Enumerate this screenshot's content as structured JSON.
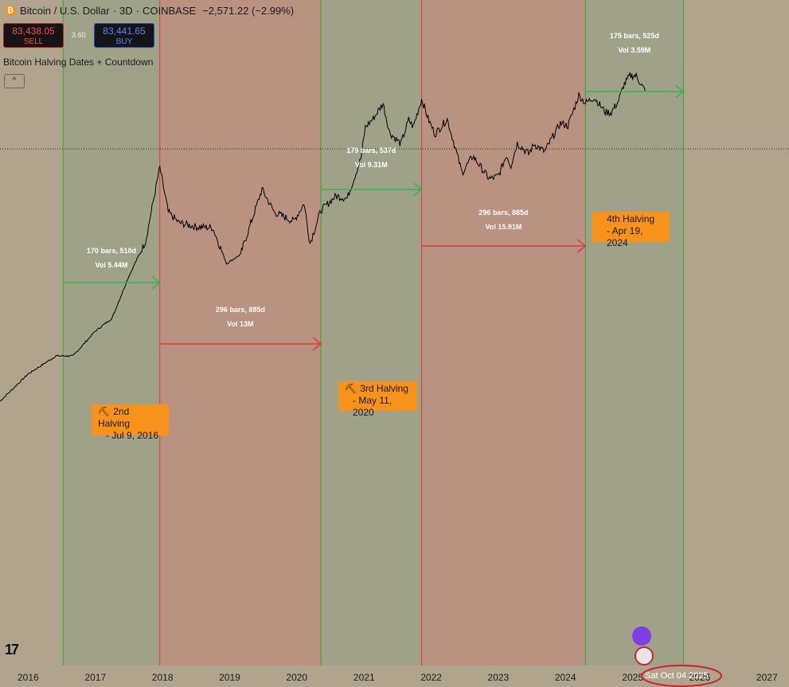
{
  "header": {
    "title": "Bitcoin / U.S. Dollar",
    "interval": "3D",
    "exchange": "COINBASE",
    "change": "−2,571.22 (−2.99%)"
  },
  "trade": {
    "sell_price": "83,438.05",
    "sell_label": "SELL",
    "spread": "3.60",
    "buy_price": "83,441.65",
    "buy_label": "BUY"
  },
  "indicator": {
    "name": "Bitcoin Halving Dates + Countdown",
    "collapse_glyph": "^"
  },
  "labels": {
    "h2_line1": "2nd Halving",
    "h2_line2": "- Jul 9, 2016",
    "h3_line1": "3rd Halving",
    "h3_line2": "- May 11, 2020",
    "h4_line1": "4th Halving",
    "h4_line2": "- Apr 19, 2024",
    "pick": "⛏"
  },
  "crosshair_date": "Sat Oct 04 2025",
  "colors": {
    "background": "#b1a48f",
    "bull_zone": "#9fa289",
    "bear_zone": "#b99282",
    "bull_line": "#31a82f",
    "bear_line": "#e03b3b",
    "halving_label": "#f7931a",
    "price_line": "#000000"
  },
  "chart_data": {
    "type": "line",
    "title": "Bitcoin / U.S. Dollar · 3D · COINBASE",
    "xlabel": "",
    "ylabel": "",
    "x_ticks": [
      "2016",
      "2017",
      "2018",
      "2019",
      "2020",
      "2021",
      "2022",
      "2023",
      "2024",
      "2025",
      "2026",
      "2027"
    ],
    "xlim": [
      "2015-08-01",
      "2027-05-01"
    ],
    "y_scale": "log",
    "series": [
      {
        "name": "",
        "x": [
          "2015-08-01",
          "2016-01-01",
          "2016-06-01",
          "2016-09-01",
          "2017-01-01",
          "2017-04-01",
          "2017-07-01",
          "2017-10-01",
          "2017-12-17",
          "2018-02-01",
          "2018-04-01",
          "2018-07-01",
          "2018-10-01",
          "2018-12-15",
          "2019-03-01",
          "2019-06-26",
          "2019-09-01",
          "2019-12-15",
          "2020-02-10",
          "2020-03-13",
          "2020-05-11",
          "2020-08-01",
          "2020-10-01",
          "2020-12-15",
          "2021-01-08",
          "2021-02-20",
          "2021-04-14",
          "2021-05-20",
          "2021-07-20",
          "2021-09-01",
          "2021-09-25",
          "2021-11-10",
          "2021-12-20",
          "2022-01-22",
          "2022-03-29",
          "2022-05-12",
          "2022-06-18",
          "2022-08-15",
          "2022-09-30",
          "2022-11-09",
          "2022-11-21",
          "2023-01-01",
          "2023-02-15",
          "2023-03-10",
          "2023-04-14",
          "2023-06-15",
          "2023-07-15",
          "2023-09-10",
          "2023-10-25",
          "2023-12-05",
          "2024-01-15",
          "2024-03-14",
          "2024-04-19",
          "2024-06-05",
          "2024-08-05",
          "2024-09-06",
          "2024-10-15",
          "2024-11-12",
          "2024-12-17",
          "2025-01-20",
          "2025-02-28",
          "2025-03-10"
        ],
        "values": [
          260,
          430,
          600,
          600,
          950,
          1200,
          2600,
          5000,
          19500,
          8500,
          7000,
          6500,
          6400,
          3300,
          3900,
          13000,
          8500,
          7200,
          10000,
          4800,
          8800,
          11500,
          11000,
          23000,
          41000,
          48000,
          63500,
          37000,
          30000,
          47000,
          41000,
          68800,
          46000,
          36000,
          47500,
          28000,
          17600,
          24000,
          19400,
          16000,
          15800,
          16600,
          24500,
          20000,
          30500,
          25000,
          30000,
          26000,
          34500,
          44000,
          42000,
          73800,
          63800,
          71000,
          54000,
          53800,
          66000,
          88000,
          106000,
          106000,
          84000,
          80000
        ]
      }
    ],
    "halvings": [
      {
        "label": "2nd Halving - Jul 9, 2016",
        "date": "2016-07-09"
      },
      {
        "label": "3rd Halving - May 11, 2020",
        "date": "2020-05-11"
      },
      {
        "label": "4th Halving - Apr 19, 2024",
        "date": "2024-04-19"
      }
    ],
    "measures": [
      {
        "text1": "170 bars, 510d",
        "text2": "Vol 5.44M",
        "color": "green",
        "from": "2016-07-09",
        "to": "2017-12-17"
      },
      {
        "text1": "296 bars, 885d",
        "text2": "Vol 13M",
        "color": "red",
        "from": "2017-12-17",
        "to": "2020-05-11"
      },
      {
        "text1": "179 bars, 537d",
        "text2": "Vol 9.31M",
        "color": "green",
        "from": "2020-05-11",
        "to": "2021-11-10"
      },
      {
        "text1": "296 bars, 885d",
        "text2": "Vol 15.91M",
        "color": "red",
        "from": "2021-11-10",
        "to": "2024-04-19"
      },
      {
        "text1": "175 bars, 525d",
        "text2": "Vol 3.59M",
        "color": "green",
        "from": "2024-04-19",
        "to": "2025-10-04"
      }
    ],
    "zones": [
      {
        "type": "bull",
        "from": "2016-07-09",
        "to": "2017-12-17"
      },
      {
        "type": "bear",
        "from": "2017-12-17",
        "to": "2020-05-11"
      },
      {
        "type": "bull",
        "from": "2020-05-11",
        "to": "2021-11-10"
      },
      {
        "type": "bear",
        "from": "2021-11-10",
        "to": "2024-04-19"
      },
      {
        "type": "bull",
        "from": "2024-04-19",
        "to": "2025-10-04"
      }
    ]
  }
}
